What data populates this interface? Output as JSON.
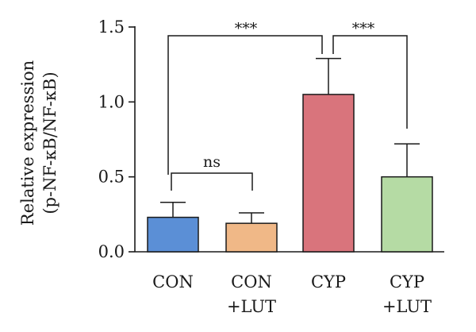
{
  "chart_data": {
    "type": "bar",
    "ylabel_line1": "Relative expression",
    "ylabel_line2": "(p-NF-κB/NF-κB)",
    "ylim": [
      0,
      1.5
    ],
    "yticks": [
      "0.0",
      "0.5",
      "1.0",
      "1.5"
    ],
    "ytick_values": [
      0,
      0.5,
      1.0,
      1.5
    ],
    "categories": [
      {
        "line1": "CON",
        "line2": ""
      },
      {
        "line1": "CON",
        "line2": "+LUT"
      },
      {
        "line1": "CYP",
        "line2": ""
      },
      {
        "line1": "CYP",
        "line2": "+LUT"
      }
    ],
    "values": [
      0.23,
      0.19,
      1.05,
      0.5
    ],
    "errors": [
      0.1,
      0.07,
      0.24,
      0.22
    ],
    "colors": [
      "#5b8fd6",
      "#f0b887",
      "#d9747c",
      "#b5dba4"
    ],
    "comparisons": [
      {
        "from": 0,
        "to": 1,
        "label": "ns"
      },
      {
        "from": 0,
        "to": 2,
        "label": "***"
      },
      {
        "from": 2,
        "to": 3,
        "label": "***"
      }
    ],
    "grid": false,
    "legend": "none"
  }
}
